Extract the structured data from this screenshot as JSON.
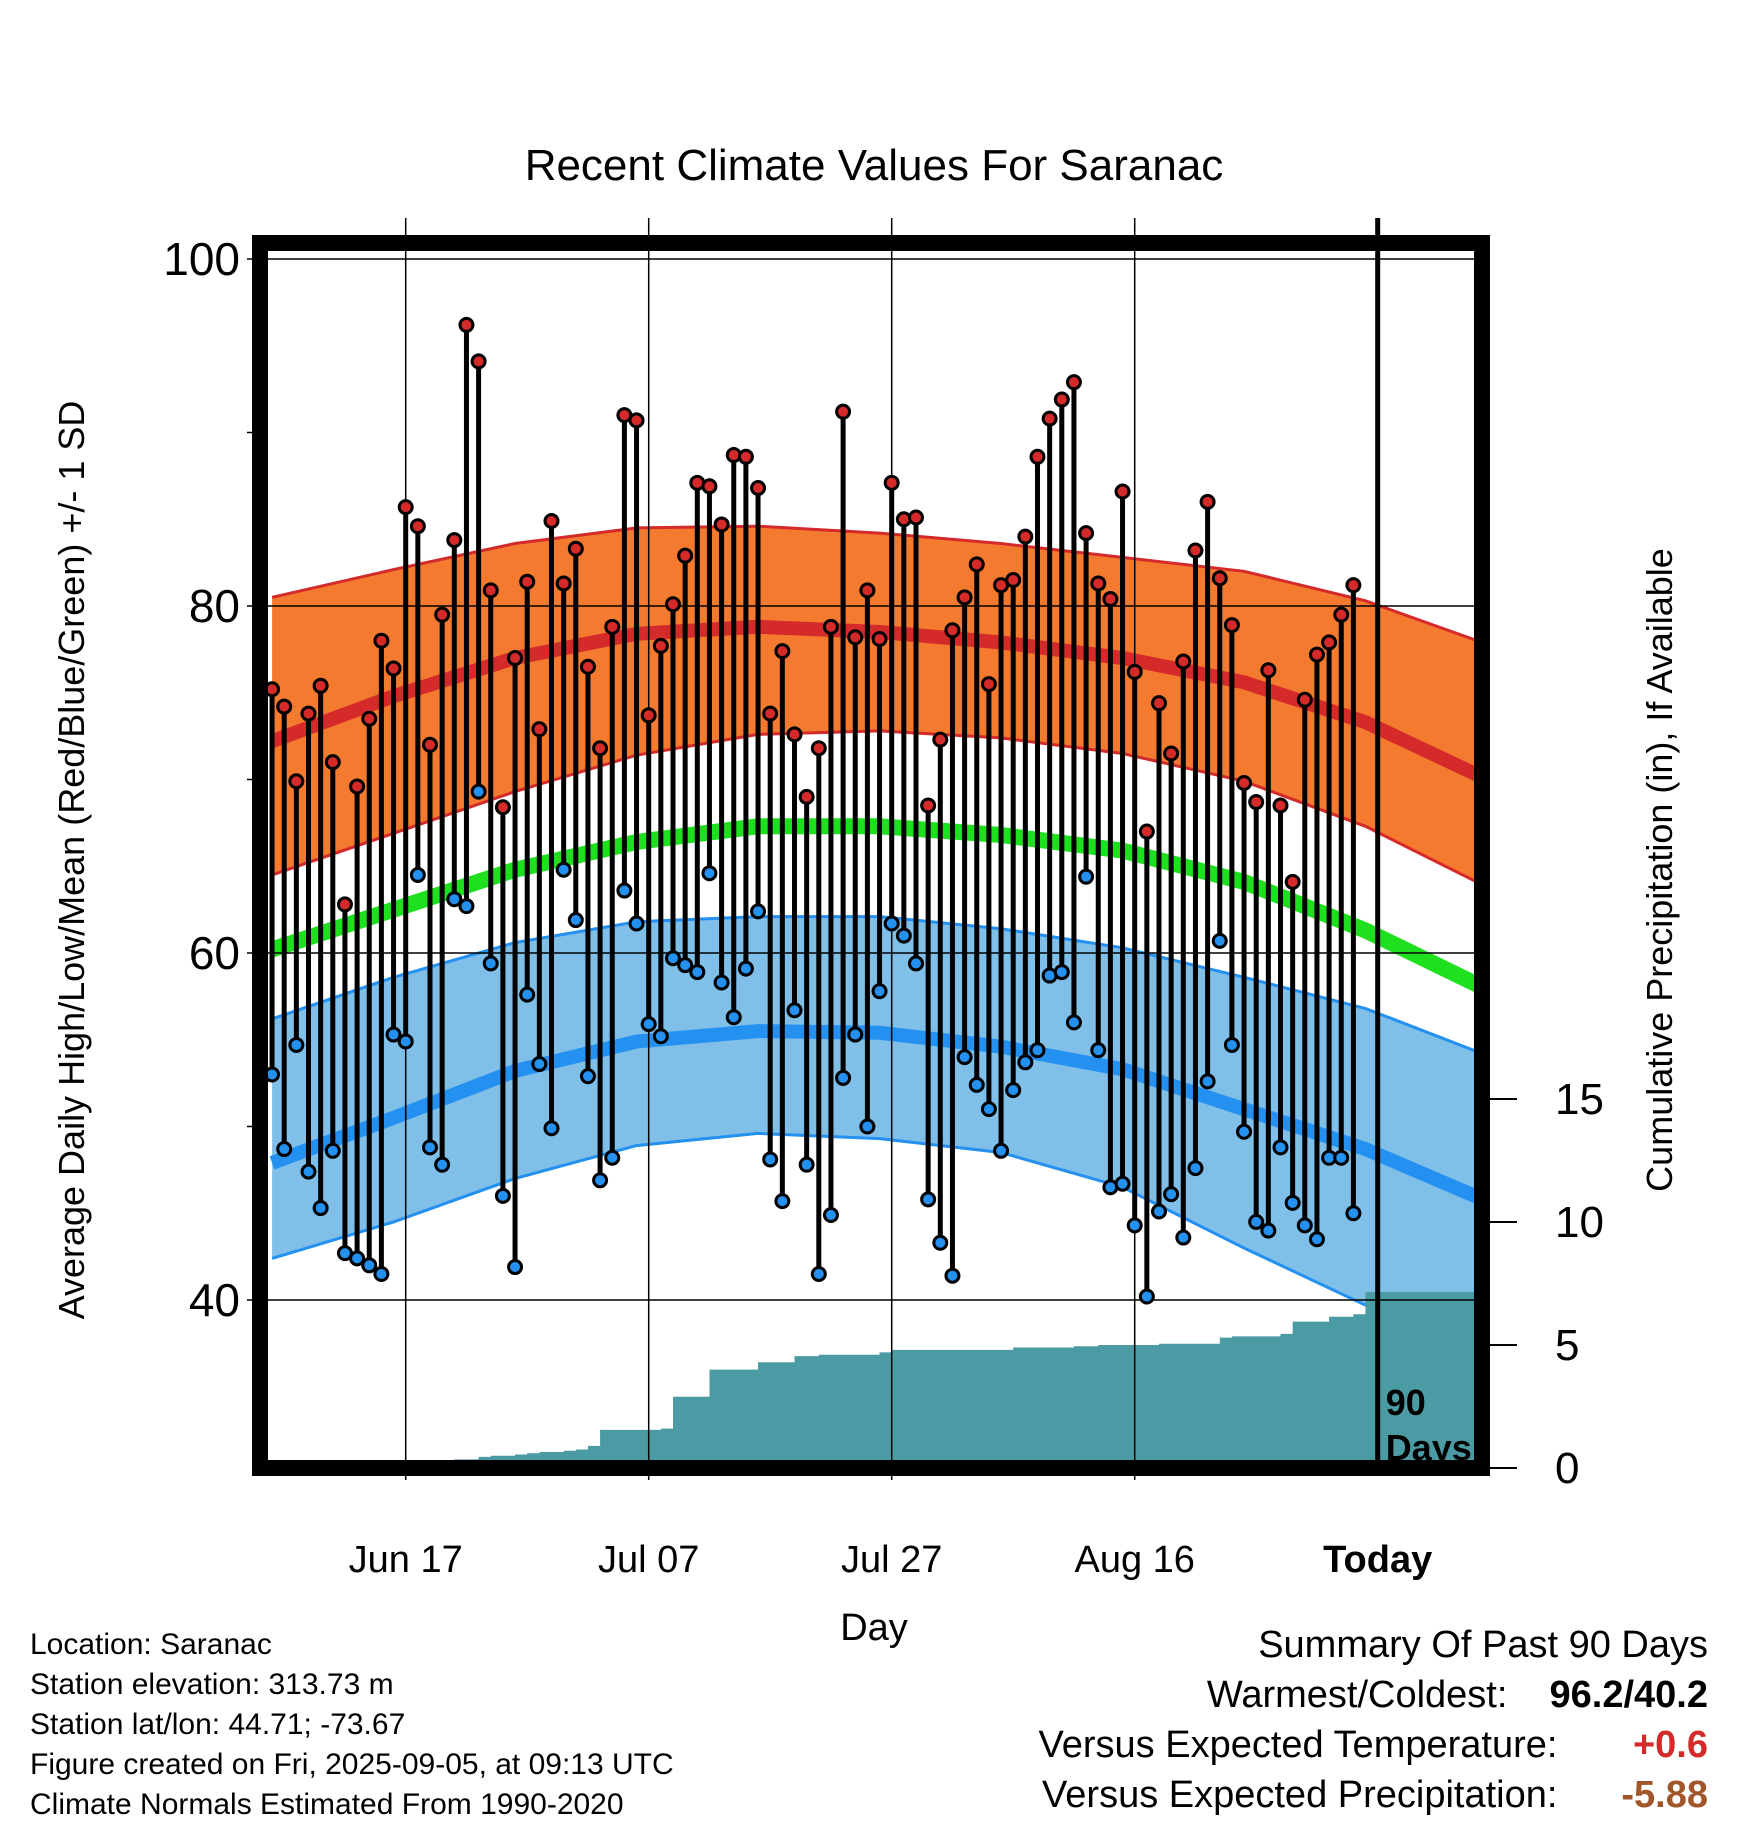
{
  "chart_data": {
    "type": "line",
    "title": "Recent Climate Values For Saranac",
    "xlabel": "Day",
    "ylabel_left": "Average Daily High/Low/Mean (Red/Blue/Green) +/- 1 SD",
    "ylabel_right": "Cumulative Precipitation (in), If Available",
    "x_tick_labels": [
      "Jun 17",
      "Jul 07",
      "Jul 27",
      "Aug 16",
      "Today"
    ],
    "x_tick_days": [
      11,
      31,
      51,
      71,
      91
    ],
    "y_left_ticks": [
      40,
      60,
      80,
      100
    ],
    "y_left_lim": [
      30.8,
      102
    ],
    "y_right_ticks": [
      0,
      5,
      10,
      15
    ],
    "y_right_lim": [
      0,
      15
    ],
    "grid": true,
    "today_marker_label": [
      "90",
      "Days"
    ],
    "colors": {
      "high_band": "#f47a30",
      "high_edge": "#d42a2a",
      "mean_line": "#1ee01e",
      "low_band": "#7fbfe8",
      "low_edge": "#2490f0",
      "precip": "#4a9ba3",
      "high_point": "#d42a2a",
      "low_point": "#2490f0"
    },
    "normals": {
      "x": [
        0,
        10,
        20,
        30,
        40,
        50,
        60,
        70,
        80,
        90,
        100
      ],
      "high_mean": [
        72.2,
        74.8,
        77.0,
        78.4,
        78.8,
        78.5,
        77.9,
        77.0,
        75.6,
        73.3,
        70.0
      ],
      "high_sd_upper": [
        80.5,
        82.1,
        83.6,
        84.5,
        84.6,
        84.2,
        83.6,
        82.8,
        82.0,
        80.3,
        77.8
      ],
      "high_sd_lower": [
        64.5,
        66.9,
        69.3,
        71.4,
        72.6,
        72.8,
        72.4,
        71.5,
        69.9,
        67.3,
        63.8
      ],
      "mean": [
        60.2,
        62.5,
        64.8,
        66.4,
        67.3,
        67.3,
        66.8,
        65.9,
        64.1,
        61.3,
        57.9
      ],
      "low_mean": [
        47.9,
        50.5,
        53.2,
        54.9,
        55.5,
        55.4,
        54.6,
        53.3,
        51.0,
        48.7,
        45.7
      ],
      "low_sd_upper": [
        56.2,
        58.6,
        60.6,
        61.8,
        62.1,
        62.1,
        61.4,
        60.3,
        58.6,
        56.8,
        54.1
      ],
      "low_sd_lower": [
        42.4,
        44.5,
        47.0,
        48.9,
        49.6,
        49.3,
        48.5,
        46.5,
        43.0,
        39.7,
        36.2
      ]
    },
    "daily_high": [
      75.2,
      74.2,
      69.9,
      73.8,
      75.4,
      71.0,
      62.8,
      69.6,
      73.5,
      78.0,
      76.4,
      85.7,
      84.6,
      72.0,
      79.5,
      83.8,
      96.2,
      94.1,
      80.9,
      68.4,
      77.0,
      81.4,
      72.9,
      84.9,
      81.3,
      83.3,
      76.5,
      71.8,
      78.8,
      91.0,
      90.7,
      73.7,
      77.7,
      80.1,
      82.9,
      87.1,
      86.9,
      84.7,
      88.7,
      88.6,
      86.8,
      73.8,
      77.4,
      72.6,
      69.0,
      71.8,
      78.8,
      91.2,
      78.2,
      80.9,
      78.1,
      87.1,
      85.0,
      85.1,
      68.5,
      72.3,
      78.6,
      80.5,
      82.4,
      75.5,
      81.2,
      81.5,
      84.0,
      88.6,
      90.8,
      91.9,
      92.9,
      84.2,
      81.3,
      80.4,
      86.6,
      76.2,
      67.0,
      74.4,
      71.5,
      76.8,
      83.2,
      86.0,
      81.6,
      78.9,
      69.8,
      68.7,
      76.3,
      68.5,
      64.1,
      74.6,
      77.2,
      77.9,
      79.5,
      81.2
    ],
    "daily_low": [
      53.0,
      48.7,
      54.7,
      47.4,
      45.3,
      48.6,
      42.7,
      42.4,
      42.0,
      41.5,
      55.3,
      54.9,
      64.5,
      48.8,
      47.8,
      63.1,
      62.7,
      69.3,
      59.4,
      46.0,
      41.9,
      57.6,
      53.6,
      49.9,
      64.8,
      61.9,
      52.9,
      46.9,
      48.2,
      63.6,
      61.7,
      55.9,
      55.2,
      59.7,
      59.3,
      58.9,
      64.6,
      58.3,
      56.3,
      59.1,
      62.4,
      48.1,
      45.7,
      56.7,
      47.8,
      41.5,
      44.9,
      52.8,
      55.3,
      50.0,
      57.8,
      61.7,
      61.0,
      59.4,
      45.8,
      43.3,
      41.4,
      54.0,
      52.4,
      51.0,
      48.6,
      52.1,
      53.7,
      54.4,
      58.7,
      58.9,
      56.0,
      64.4,
      54.4,
      46.5,
      46.7,
      44.3,
      40.2,
      45.1,
      46.1,
      43.6,
      47.6,
      52.6,
      60.7,
      54.7,
      49.7,
      44.5,
      44.0,
      48.8,
      45.6,
      44.3,
      43.5,
      48.2,
      48.2,
      45.0
    ],
    "precip_cumulative": {
      "x": [
        11,
        12,
        14,
        15,
        17,
        18,
        20,
        21,
        22,
        24,
        25,
        26,
        27,
        28,
        32,
        33,
        34,
        36,
        37,
        40,
        41,
        43,
        45,
        48,
        49,
        50,
        51,
        53,
        56,
        60,
        61,
        65,
        66,
        68,
        71,
        73,
        77,
        78,
        79,
        81,
        83,
        84,
        85,
        87,
        89,
        90,
        100
      ],
      "y": [
        0,
        0.15,
        0.25,
        0.35,
        0.45,
        0.5,
        0.55,
        0.6,
        0.65,
        0.7,
        0.75,
        0.9,
        1.55,
        1.55,
        1.6,
        2.9,
        2.9,
        4.0,
        4.0,
        4.3,
        4.3,
        4.55,
        4.6,
        4.6,
        4.6,
        4.7,
        4.8,
        4.8,
        4.8,
        4.8,
        4.9,
        4.9,
        4.95,
        5.0,
        5.0,
        5.05,
        5.05,
        5.3,
        5.35,
        5.35,
        5.45,
        5.95,
        5.95,
        6.15,
        6.25,
        7.15,
        7.15
      ]
    }
  },
  "info": {
    "location": "Location: Saranac",
    "elevation": "Station elevation: 313.73 m",
    "latlon": "Station lat/lon: 44.71; -73.67",
    "created": "Figure created on Fri, 2025-09-05, at 09:13 UTC",
    "normals": "Climate Normals Estimated From 1990-2020"
  },
  "summary": {
    "title": "Summary Of Past 90 Days",
    "warmest_label": "Warmest/Coldest:",
    "warmest_value": "96.2/40.2",
    "temp_label": "Versus Expected Temperature:",
    "temp_value": "+0.6",
    "temp_color": "#d42a2a",
    "precip_label": "Versus Expected Precipitation:",
    "precip_value": "-5.88",
    "precip_color": "#a0562a"
  }
}
